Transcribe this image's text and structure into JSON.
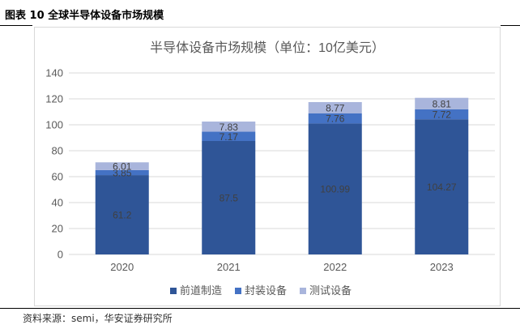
{
  "figure_caption": "图表 10 全球半导体设备市场规模",
  "source": "资料来源：semi，华安证券研究所",
  "chart_data": {
    "type": "bar",
    "stacked": true,
    "title": "半导体设备市场规模（单位：10亿美元）",
    "categories": [
      "2020",
      "2021",
      "2022",
      "2023"
    ],
    "series": [
      {
        "name": "前道制造",
        "color": "#2f5597",
        "values": [
          61.2,
          87.5,
          100.99,
          104.27
        ],
        "labels": [
          "61.2",
          "87.5",
          "100.99",
          "104.27"
        ]
      },
      {
        "name": "封装设备",
        "color": "#4472c4",
        "values": [
          3.85,
          7.17,
          7.76,
          7.72
        ],
        "labels": [
          "3.85",
          "7.17",
          "7.76",
          "7.72"
        ]
      },
      {
        "name": "测试设备",
        "color": "#a9b5dc",
        "values": [
          6.01,
          7.83,
          8.77,
          8.81
        ],
        "labels": [
          "6.01",
          "7.83",
          "8.77",
          "8.81"
        ]
      }
    ],
    "ylim": [
      0,
      140
    ],
    "yticks": [
      0,
      20,
      40,
      60,
      80,
      100,
      120,
      140
    ],
    "grid": true,
    "legend_position": "bottom"
  }
}
